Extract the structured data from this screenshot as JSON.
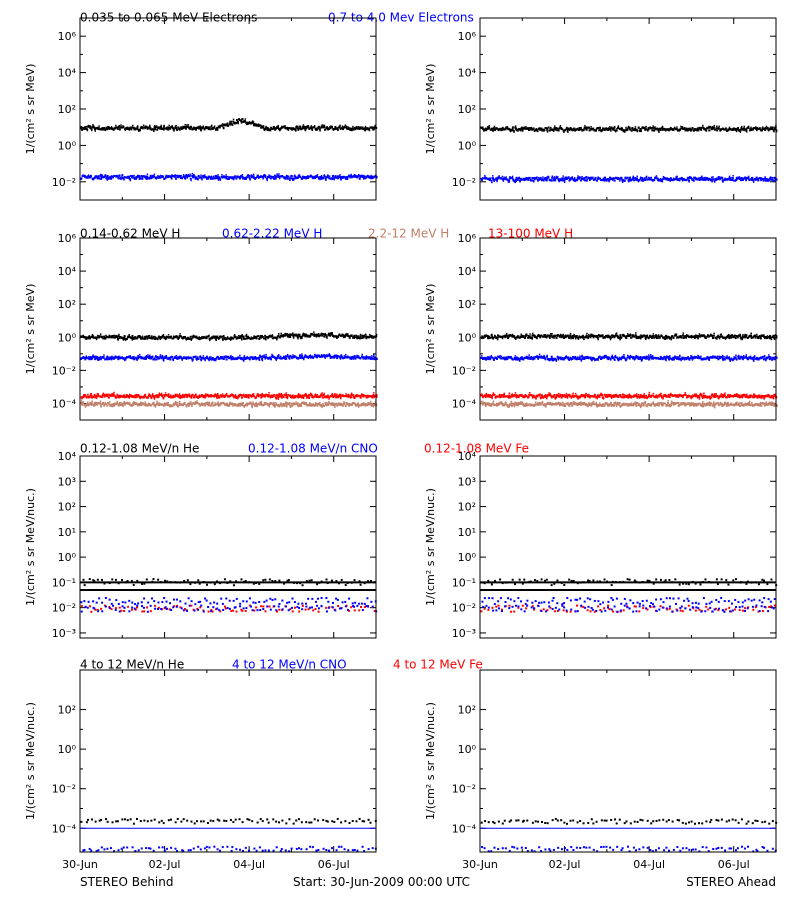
{
  "footer": {
    "left": "STEREO Behind",
    "center": "Start: 30-Jun-2009 00:00 UTC",
    "right": "STEREO Ahead"
  },
  "x_ticks": [
    "30-Jun",
    "02-Jul",
    "04-Jul",
    "06-Jul"
  ],
  "colors": {
    "black": "#000000",
    "blue": "#0000ff",
    "salmon": "#c0806a",
    "red": "#ff0000"
  },
  "chart_data": [
    {
      "type": "scatter",
      "row": 1,
      "ylabel": "1/(cm² s sr MeV)",
      "ylim_log10": [
        -3,
        7
      ],
      "y_ticks": [
        "10⁻²",
        "10⁰",
        "10²",
        "10⁴",
        "10⁶"
      ],
      "y_tick_exponents": [
        -2,
        0,
        2,
        4,
        6
      ],
      "legend": [
        {
          "name": "0.035 to 0.065 MeV Electrons",
          "color": "#000000"
        },
        {
          "name": "0.7 to 4.0 Mev Electrons",
          "color": "#0000ff"
        }
      ],
      "panels": [
        {
          "side": "behind",
          "series": [
            {
              "color": "#000000",
              "log10_level": 1.0,
              "bump": {
                "start": 0.46,
                "end": 0.62,
                "height": 0.45
              }
            },
            {
              "color": "#0000ff",
              "log10_level": -1.7
            }
          ]
        },
        {
          "side": "ahead",
          "series": [
            {
              "color": "#000000",
              "log10_level": 0.95
            },
            {
              "color": "#0000ff",
              "log10_level": -1.8
            }
          ]
        }
      ]
    },
    {
      "type": "scatter",
      "row": 2,
      "ylabel": "1/(cm² s sr MeV)",
      "ylim_log10": [
        -5,
        6
      ],
      "y_ticks": [
        "10⁻⁴",
        "10⁻²",
        "10⁰",
        "10²",
        "10⁴",
        "10⁶"
      ],
      "y_tick_exponents": [
        -4,
        -2,
        0,
        2,
        4,
        6
      ],
      "legend": [
        {
          "name": "0.14-0.62 MeV H",
          "color": "#000000"
        },
        {
          "name": "0.62-2.22 MeV H",
          "color": "#0000ff"
        },
        {
          "name": "2.2-12 MeV H",
          "color": "#c0806a"
        },
        {
          "name": "13-100 MeV H",
          "color": "#ff0000"
        }
      ],
      "panels": [
        {
          "side": "behind",
          "series": [
            {
              "color": "#000000",
              "log10_level": 0.05,
              "bump": {
                "start": 0.6,
                "end": 1.0,
                "height": 0.15
              }
            },
            {
              "color": "#0000ff",
              "log10_level": -1.2,
              "bump": {
                "start": 0.6,
                "end": 1.0,
                "height": 0.1
              }
            },
            {
              "color": "#c0806a",
              "log10_level": -4.0
            },
            {
              "color": "#ff0000",
              "log10_level": -3.5
            }
          ]
        },
        {
          "side": "ahead",
          "series": [
            {
              "color": "#000000",
              "log10_level": 0.1
            },
            {
              "color": "#0000ff",
              "log10_level": -1.2
            },
            {
              "color": "#c0806a",
              "log10_level": -4.0
            },
            {
              "color": "#ff0000",
              "log10_level": -3.5
            }
          ]
        }
      ]
    },
    {
      "type": "scatter",
      "row": 3,
      "ylabel": "1/(cm² s sr MeV/nuc.)",
      "ylim_log10": [
        -3.2,
        4
      ],
      "y_ticks": [
        "10⁻³",
        "10⁻²",
        "10⁻¹",
        "10⁰",
        "10¹",
        "10²",
        "10³",
        "10⁴"
      ],
      "y_tick_exponents": [
        -3,
        -2,
        -1,
        0,
        1,
        2,
        3,
        4
      ],
      "legend": [
        {
          "name": "0.12-1.08 MeV/n He",
          "color": "#000000"
        },
        {
          "name": "0.12-1.08 MeV/n CNO",
          "color": "#0000ff"
        },
        {
          "name": "0.12-1.08 MeV Fe",
          "color": "#ff0000"
        }
      ],
      "panels": [
        {
          "side": "behind",
          "lines_log10": [
            -1.0,
            -1.3
          ],
          "series": [
            {
              "color": "#000000",
              "log10_level": -0.95,
              "sparse": true
            },
            {
              "color": "#0000ff",
              "log10_level": -1.7,
              "sparse": true
            },
            {
              "color": "#ff0000",
              "log10_level": -2.0,
              "sparse": true
            },
            {
              "color": "#0000ff",
              "log10_level": -2.0,
              "sparse": true
            }
          ]
        },
        {
          "side": "ahead",
          "lines_log10": [
            -1.0,
            -1.3
          ],
          "series": [
            {
              "color": "#000000",
              "log10_level": -0.95,
              "sparse": true
            },
            {
              "color": "#0000ff",
              "log10_level": -1.7,
              "sparse": true
            },
            {
              "color": "#ff0000",
              "log10_level": -2.0,
              "sparse": true
            },
            {
              "color": "#0000ff",
              "log10_level": -2.0,
              "sparse": true
            }
          ]
        }
      ]
    },
    {
      "type": "scatter",
      "row": 4,
      "ylabel": "1/(cm² s sr MeV/nuc.)",
      "ylim_log10": [
        -5.2,
        4
      ],
      "y_ticks": [
        "10⁻⁴",
        "10⁻²",
        "10⁰",
        "10²"
      ],
      "y_tick_exponents": [
        -4,
        -2,
        0,
        2
      ],
      "legend": [
        {
          "name": "4 to 12 MeV/n He",
          "color": "#000000"
        },
        {
          "name": "4 to 12 MeV/n CNO",
          "color": "#0000ff"
        },
        {
          "name": "4 to 12 MeV Fe",
          "color": "#ff0000"
        }
      ],
      "panels": [
        {
          "side": "behind",
          "blue_line_log10": -4.0,
          "series": [
            {
              "color": "#000000",
              "log10_level": -3.6,
              "sparse": true
            },
            {
              "color": "#0000ff",
              "log10_level": -5.0,
              "sparse": true
            }
          ]
        },
        {
          "side": "ahead",
          "blue_line_log10": -4.0,
          "series": [
            {
              "color": "#000000",
              "log10_level": -3.6,
              "sparse": true
            },
            {
              "color": "#0000ff",
              "log10_level": -5.0,
              "sparse": true
            }
          ]
        }
      ]
    }
  ]
}
